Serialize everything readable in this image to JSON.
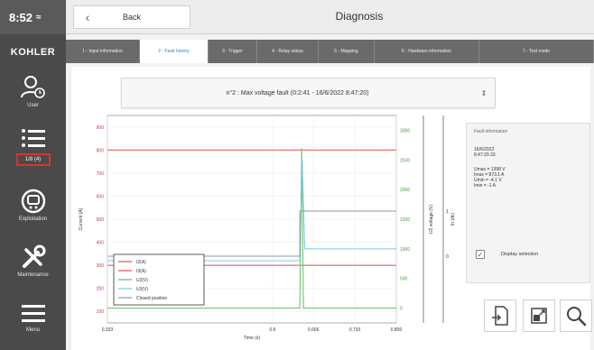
{
  "status": {
    "time": "8:52"
  },
  "brand": {
    "logo_text": "KOHLER"
  },
  "sidebar": {
    "items": [
      {
        "label": "User"
      },
      {
        "label": "Menu list"
      },
      {
        "label": "Exploitation"
      },
      {
        "label": "Maintenance"
      },
      {
        "label": "Menu"
      }
    ],
    "highlight_label": "1/8 (4)"
  },
  "header": {
    "back_label": "Back",
    "title": "Diagnosis"
  },
  "tabs": [
    {
      "label": "1 - Input information",
      "active": false
    },
    {
      "label": "2 - Fault history",
      "active": true
    },
    {
      "label": "3 - Trigger",
      "active": false
    },
    {
      "label": "4 - Relay status",
      "active": false
    },
    {
      "label": "5 - Mapping",
      "active": false
    },
    {
      "label": "6 - Hardware information",
      "active": false
    },
    {
      "label": "7 - Test mode",
      "active": false
    }
  ],
  "fault_select": {
    "value": "n°2 : Max voltage fault (0:2:41 - 16/6/2022 8:47:20)"
  },
  "info_panel": {
    "heading": "Fault information",
    "lines": [
      "16/6/2022",
      "8:47:20.33"
    ],
    "measures": [
      "Umax = 1398 V",
      "Imax = 873.1 A",
      "Umin = -4.1 V",
      "Imin = -1 A"
    ]
  },
  "display_selection": {
    "label": "Display selection",
    "checked": true
  },
  "toolbar": {
    "export_icon": "export-icon",
    "fit_icon": "fit-icon",
    "zoom_icon": "zoom-icon"
  },
  "colors": {
    "sidebar": "#4a4a4a",
    "tab_bar": "#6a6a6a",
    "tab_active_text": "#2a86c8",
    "highlight": "#e03030"
  },
  "chart_data": {
    "type": "line",
    "xlabel": "Time (s)",
    "ylabel_left": "Current (A)",
    "ylabel_right1": "U2 voltage (V)",
    "ylabel_right2": "In (dc)",
    "x_ticks": [
      "0.333",
      "0.6",
      "0.666",
      "0.733",
      "0.800"
    ],
    "y_left_ticks": [
      "900",
      "800",
      "700",
      "600",
      "500",
      "400",
      "300",
      "200",
      "100"
    ],
    "y_right_ticks": [
      "3000",
      "2500",
      "2000",
      "1500",
      "1000",
      "500",
      "0"
    ],
    "y_right2_ticks": [
      "1",
      "0"
    ],
    "xlim": [
      0.333,
      0.8
    ],
    "ylim_left": [
      50,
      950
    ],
    "ylim_right": [
      -250,
      3250
    ],
    "series": [
      {
        "name": "I2(A)",
        "color": "#e05050",
        "axis": "left",
        "x": [
          0.333,
          0.8
        ],
        "y": [
          300,
          300
        ]
      },
      {
        "name": "I3(A)",
        "color": "#e05050",
        "axis": "left",
        "x": [
          0.333,
          0.8
        ],
        "y": [
          800,
          800
        ]
      },
      {
        "name": "U2(V)",
        "color": "#66bb66",
        "axis": "right",
        "x": [
          0.333,
          0.644,
          0.647,
          0.65,
          0.8
        ],
        "y": [
          0,
          0,
          2700,
          0,
          0
        ]
      },
      {
        "name": "U3(V)",
        "color": "#77ccdd",
        "axis": "right",
        "x": [
          0.333,
          0.644,
          0.648,
          0.652,
          0.8
        ],
        "y": [
          800,
          800,
          2500,
          1000,
          1000
        ]
      },
      {
        "name": "Closed position",
        "color": "#8899aa",
        "axis": "right2",
        "x": [
          0.333,
          0.644,
          0.644,
          0.8
        ],
        "y": [
          0,
          0,
          1,
          1
        ]
      }
    ]
  }
}
